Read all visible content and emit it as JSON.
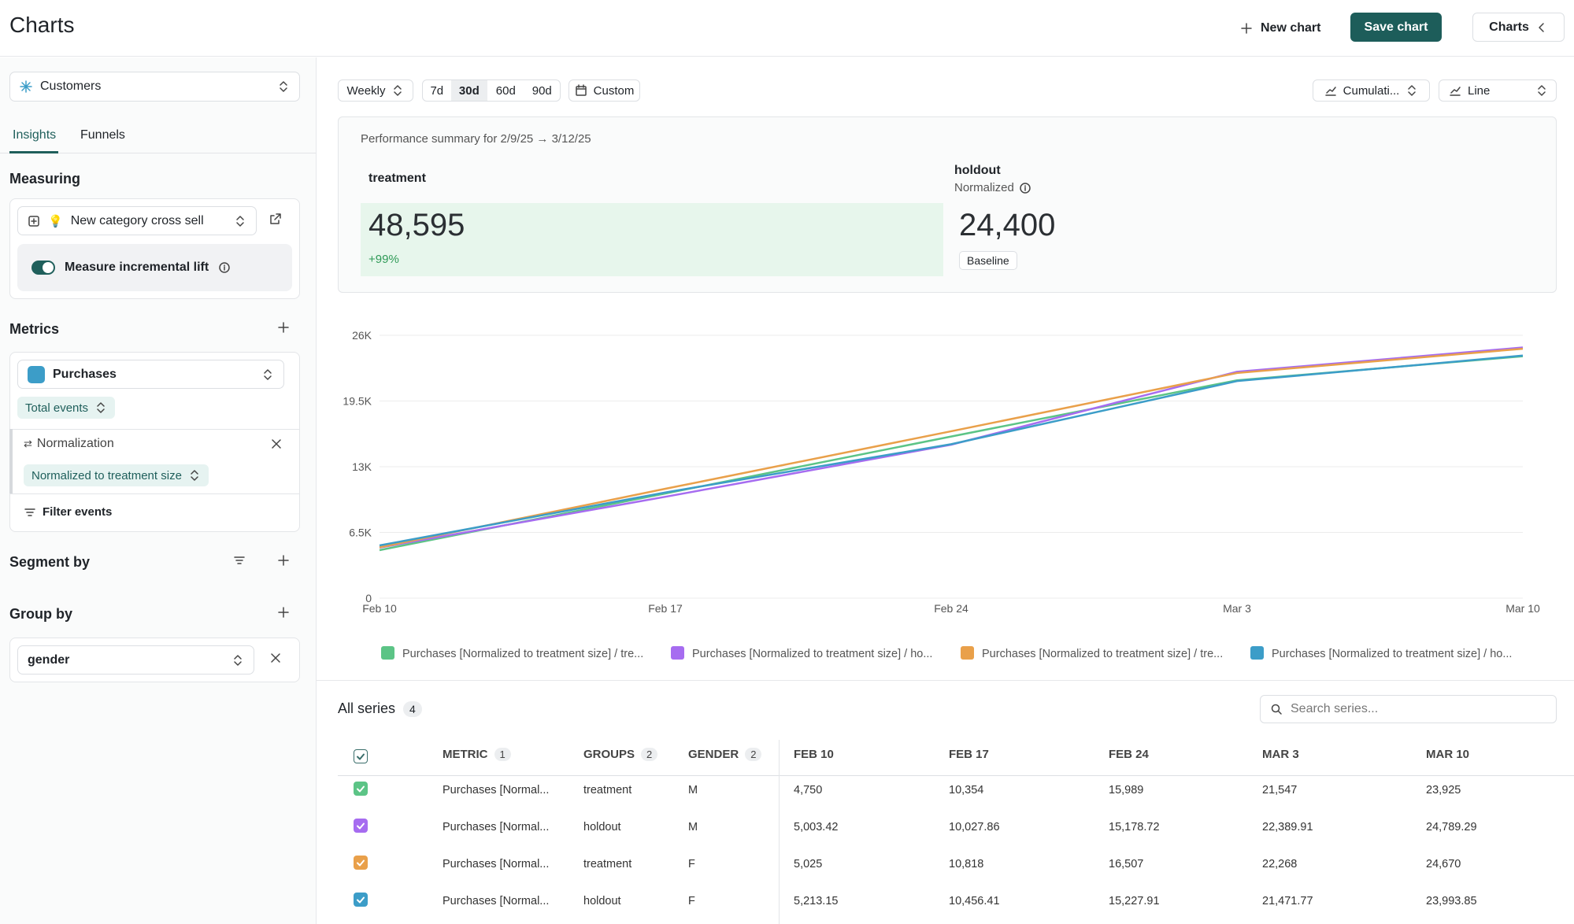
{
  "header": {
    "title": "Charts",
    "new_chart": "New chart",
    "save_chart": "Save chart",
    "charts_button": "Charts"
  },
  "sidebar": {
    "source": "Customers",
    "tabs": [
      "Insights",
      "Funnels"
    ],
    "measuring": {
      "title": "Measuring",
      "event": "New category cross sell",
      "toggle": "Measure incremental lift"
    },
    "metrics": {
      "title": "Metrics",
      "metric": "Purchases",
      "aggregation": "Total events",
      "normalization": "Normalization",
      "normalization_value": "Normalized to treatment size",
      "filter": "Filter events"
    },
    "segment_by": "Segment by",
    "group_by": {
      "title": "Group by",
      "value": "gender"
    }
  },
  "controls": {
    "interval": "Weekly",
    "ranges": [
      "7d",
      "30d",
      "60d",
      "90d"
    ],
    "custom": "Custom",
    "accumulation": "Cumulati...",
    "chart_style": "Line"
  },
  "summary": {
    "title": "Performance summary for 2/9/25 → 3/12/25",
    "treatment": {
      "label": "treatment",
      "value": "48,595",
      "change": "+99%"
    },
    "holdout": {
      "label": "holdout",
      "note": "Normalized",
      "value": "24,400",
      "badge": "Baseline"
    }
  },
  "chart_data": {
    "type": "line",
    "categories": [
      "Feb 10",
      "Feb 17",
      "Feb 24",
      "Mar 3",
      "Mar 10"
    ],
    "ylim": [
      0,
      26000
    ],
    "yticks": [
      0,
      {
        "value": 6500,
        "label": "6.5K"
      },
      {
        "value": 13000,
        "label": "13K"
      },
      {
        "value": 19500,
        "label": "19.5K"
      },
      {
        "value": 26000,
        "label": "26K"
      }
    ],
    "grid": true,
    "series": [
      {
        "name": "Purchases [Normalized to treatment size] / tre...",
        "color": "#5cc486",
        "values": [
          4750,
          10354,
          15989,
          21547,
          23925
        ]
      },
      {
        "name": "Purchases [Normalized to treatment size] / ho...",
        "color": "#a66cf0",
        "values": [
          5003.42,
          10027.86,
          15178.72,
          22389.91,
          24789.29
        ]
      },
      {
        "name": "Purchases [Normalized to treatment size] / tre...",
        "color": "#e9a04a",
        "values": [
          5025,
          10818,
          16507,
          22268,
          24670
        ]
      },
      {
        "name": "Purchases [Normalized to treatment size] / ho...",
        "color": "#3c9dc8",
        "values": [
          5213.15,
          10456.41,
          15227.91,
          21471.77,
          23993.85
        ]
      }
    ]
  },
  "table": {
    "title": "All series",
    "count": 4,
    "search": "Search series...",
    "columns": [
      {
        "label": "METRIC",
        "count": 1
      },
      {
        "label": "GROUPS",
        "count": 2
      },
      {
        "label": "GENDER",
        "count": 2
      },
      {
        "label": "FEB 10"
      },
      {
        "label": "FEB 17"
      },
      {
        "label": "FEB 24"
      },
      {
        "label": "MAR 3"
      },
      {
        "label": "MAR 10"
      }
    ],
    "rows": [
      [
        "Purchases [Normal...",
        "treatment",
        "M",
        "4,750",
        "10,354",
        "15,989",
        "21,547",
        "23,925"
      ],
      [
        "Purchases [Normal...",
        "holdout",
        "M",
        "5,003.42",
        "10,027.86",
        "15,178.72",
        "22,389.91",
        "24,789.29"
      ],
      [
        "Purchases [Normal...",
        "treatment",
        "F",
        "5,025",
        "10,818",
        "16,507",
        "22,268",
        "24,670"
      ],
      [
        "Purchases [Normal...",
        "holdout",
        "F",
        "5,213.15",
        "10,456.41",
        "15,227.91",
        "21,471.77",
        "23,993.85"
      ]
    ]
  }
}
